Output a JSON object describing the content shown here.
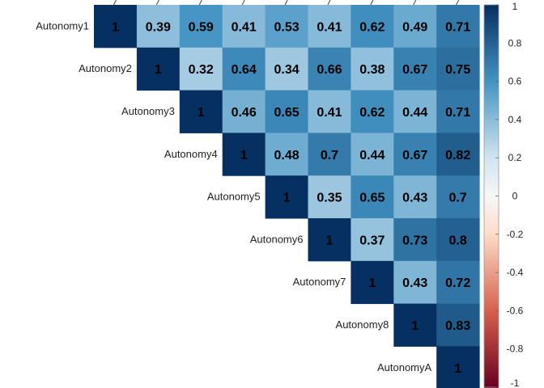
{
  "chart_data": {
    "type": "heatmap",
    "title": "",
    "variables": [
      "Autonomy1",
      "Autonomy2",
      "Autonomy3",
      "Autonomy4",
      "Autonomy5",
      "Autonomy6",
      "Autonomy7",
      "Autonomy8",
      "AutonomyA"
    ],
    "matrix": [
      [
        "1",
        "0.39",
        "0.59",
        "0.41",
        "0.53",
        "0.41",
        "0.62",
        "0.49",
        "0.71"
      ],
      [
        null,
        "1",
        "0.32",
        "0.64",
        "0.34",
        "0.66",
        "0.38",
        "0.67",
        "0.75"
      ],
      [
        null,
        null,
        "1",
        "0.46",
        "0.65",
        "0.41",
        "0.62",
        "0.44",
        "0.71"
      ],
      [
        null,
        null,
        null,
        "1",
        "0.48",
        "0.7",
        "0.44",
        "0.67",
        "0.82"
      ],
      [
        null,
        null,
        null,
        null,
        "1",
        "0.35",
        "0.65",
        "0.43",
        "0.7"
      ],
      [
        null,
        null,
        null,
        null,
        null,
        "1",
        "0.37",
        "0.73",
        "0.8"
      ],
      [
        null,
        null,
        null,
        null,
        null,
        null,
        "1",
        "0.43",
        "0.72"
      ],
      [
        null,
        null,
        null,
        null,
        null,
        null,
        null,
        "1",
        "0.83"
      ],
      [
        null,
        null,
        null,
        null,
        null,
        null,
        null,
        null,
        "1"
      ]
    ],
    "colorbar": {
      "range": [
        -1,
        1
      ],
      "ticks": [
        "1",
        "0.8",
        "0.6",
        "0.4",
        "0.2",
        "0",
        "-0.2",
        "-0.4",
        "-0.6",
        "-0.8",
        "-1"
      ],
      "colors": {
        "neg_strong": "#67001f",
        "neg_mid": "#d6604d",
        "neg_light": "#fddbc7",
        "zero": "#f7f7f7",
        "pos_light": "#d1e5f0",
        "pos_mid": "#4393c3",
        "pos_strong": "#053061"
      }
    },
    "legend": "right"
  }
}
